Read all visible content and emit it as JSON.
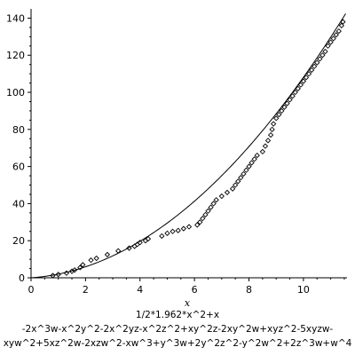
{
  "chart_data": {
    "type": "scatter",
    "xlabel": "x",
    "ylabel": "",
    "xlim": [
      0,
      11.6
    ],
    "ylim": [
      0,
      145
    ],
    "x_ticks": [
      0,
      2,
      4,
      6,
      8,
      10
    ],
    "y_ticks": [
      0,
      20,
      40,
      60,
      80,
      100,
      120,
      140
    ],
    "x_tick_labels": [
      "0",
      "2",
      "4",
      "6",
      "8",
      "10"
    ],
    "y_tick_labels": [
      "0",
      "20",
      "40",
      "60",
      "80",
      "100",
      "120",
      "140"
    ],
    "grid": false,
    "legend": "none",
    "caption": [
      "1/2*1.962*x^2+x",
      "-2x^3w-x^2y^2-2x^2yz-x^2z^2+xy^2z-2xy^2w+xyz^2-5xyzw-",
      "xyw^2+5xz^2w-2xzw^2-xw^3+y^3w+2y^2z^2-y^2w^2+2z^3w+w^4"
    ],
    "curve": {
      "expression": "1/2*1.962*x^2+x",
      "style": "line",
      "color": "#000000"
    },
    "series": [
      {
        "style": "markers",
        "marker": "diamond",
        "color": "#000000",
        "points": [
          [
            0.8,
            1.2
          ],
          [
            1.0,
            1.8
          ],
          [
            1.3,
            2.5
          ],
          [
            1.5,
            3.5
          ],
          [
            1.6,
            4.2
          ],
          [
            1.8,
            5.5
          ],
          [
            1.9,
            7.0
          ],
          [
            2.2,
            9.5
          ],
          [
            2.4,
            10.5
          ],
          [
            2.8,
            12.5
          ],
          [
            3.2,
            14.5
          ],
          [
            3.6,
            16.0
          ],
          [
            3.8,
            17.0
          ],
          [
            3.9,
            18.0
          ],
          [
            4.0,
            19.0
          ],
          [
            4.2,
            20.0
          ],
          [
            4.3,
            21.0
          ],
          [
            4.8,
            22.5
          ],
          [
            5.0,
            24.0
          ],
          [
            5.2,
            25.0
          ],
          [
            5.4,
            25.5
          ],
          [
            5.6,
            26.5
          ],
          [
            5.8,
            27.5
          ],
          [
            6.1,
            28.5
          ],
          [
            6.2,
            30.0
          ],
          [
            6.3,
            32.0
          ],
          [
            6.4,
            34.0
          ],
          [
            6.5,
            36.0
          ],
          [
            6.6,
            38.0
          ],
          [
            6.7,
            40.0
          ],
          [
            6.8,
            42.0
          ],
          [
            7.0,
            44.0
          ],
          [
            7.2,
            46.0
          ],
          [
            7.4,
            48.0
          ],
          [
            7.5,
            50.0
          ],
          [
            7.6,
            52.0
          ],
          [
            7.7,
            54.0
          ],
          [
            7.8,
            56.0
          ],
          [
            7.9,
            58.0
          ],
          [
            8.0,
            60.0
          ],
          [
            8.1,
            62.0
          ],
          [
            8.2,
            64.0
          ],
          [
            8.3,
            66.0
          ],
          [
            8.5,
            68.0
          ],
          [
            8.6,
            71.0
          ],
          [
            8.7,
            74.0
          ],
          [
            8.8,
            77.0
          ],
          [
            8.85,
            80.0
          ],
          [
            8.9,
            83.0
          ],
          [
            9.0,
            86.0
          ],
          [
            9.1,
            88.0
          ],
          [
            9.2,
            90.0
          ],
          [
            9.3,
            92.0
          ],
          [
            9.4,
            94.0
          ],
          [
            9.5,
            96.0
          ],
          [
            9.6,
            98.0
          ],
          [
            9.7,
            100.0
          ],
          [
            9.8,
            102.0
          ],
          [
            9.9,
            104.0
          ],
          [
            10.0,
            106.0
          ],
          [
            10.1,
            108.0
          ],
          [
            10.2,
            110.0
          ],
          [
            10.3,
            112.0
          ],
          [
            10.4,
            114.0
          ],
          [
            10.5,
            116.0
          ],
          [
            10.6,
            118.0
          ],
          [
            10.7,
            120.0
          ],
          [
            10.8,
            122.0
          ],
          [
            10.9,
            125.0
          ],
          [
            11.0,
            127.0
          ],
          [
            11.1,
            129.0
          ],
          [
            11.2,
            131.0
          ],
          [
            11.3,
            133.0
          ],
          [
            11.4,
            136.0
          ],
          [
            11.45,
            138.0
          ]
        ]
      }
    ]
  }
}
